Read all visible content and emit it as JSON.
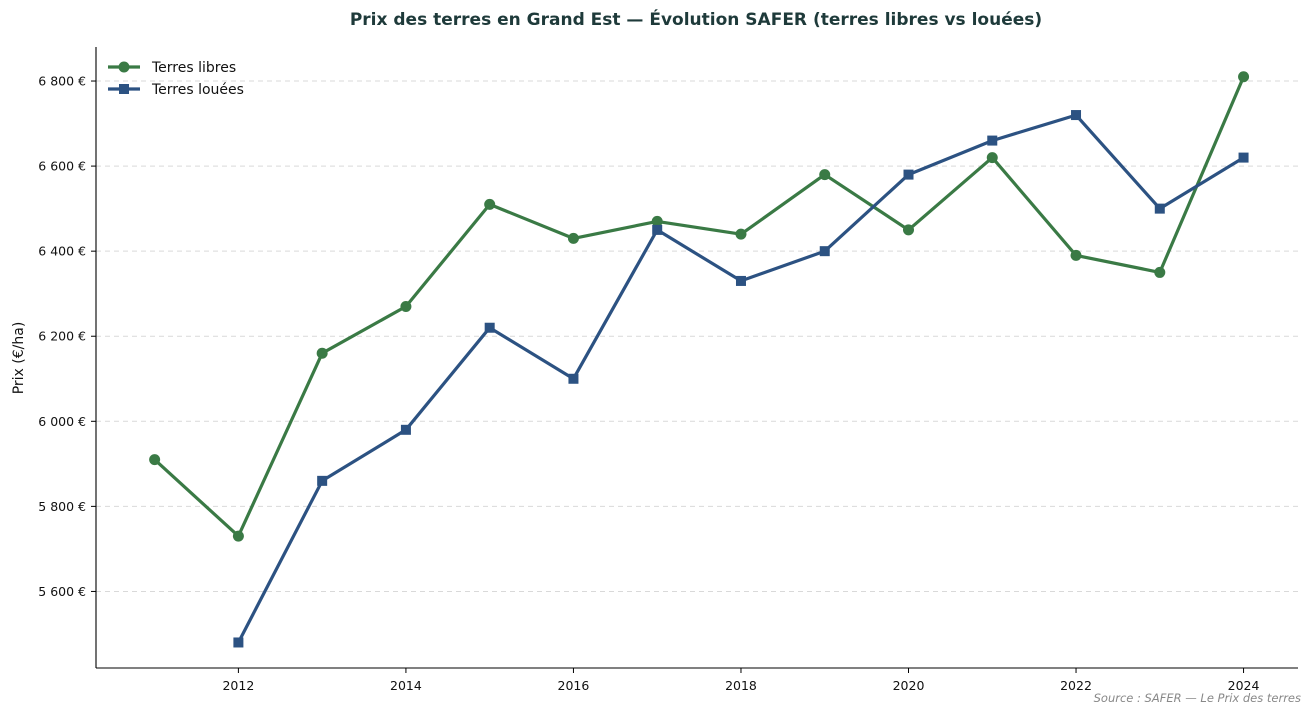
{
  "chart_data": {
    "type": "line",
    "title": "Prix des terres en Grand Est — Évolution SAFER (terres libres vs louées)",
    "xlabel": "",
    "ylabel": "Prix (€/ha)",
    "x": [
      2011,
      2012,
      2013,
      2014,
      2015,
      2016,
      2017,
      2018,
      2019,
      2020,
      2021,
      2022,
      2023,
      2024
    ],
    "xticks": [
      "2012",
      "2014",
      "2016",
      "2018",
      "2020",
      "2022",
      "2024"
    ],
    "xtick_values": [
      2012,
      2014,
      2016,
      2018,
      2020,
      2022,
      2024
    ],
    "yticks": [
      "5 600 €",
      "5 800 €",
      "6 000 €",
      "6 200 €",
      "6 400 €",
      "6 600 €",
      "6 800 €"
    ],
    "ytick_values": [
      5600,
      5800,
      6000,
      6200,
      6400,
      6600,
      6800
    ],
    "xlim": [
      2010.3,
      2024.65
    ],
    "ylim": [
      5420,
      6880
    ],
    "grid": "horizontal dashed",
    "legend_position": "top-left",
    "series": [
      {
        "name": "Terres libres",
        "color": "#3a7a45",
        "marker": "circle",
        "values": [
          5910,
          5730,
          6160,
          6270,
          6510,
          6430,
          6470,
          6440,
          6580,
          6450,
          6620,
          6390,
          6350,
          6810
        ]
      },
      {
        "name": "Terres louées",
        "color": "#2c5282",
        "marker": "square",
        "values": [
          null,
          5480,
          5860,
          5980,
          6220,
          6100,
          6450,
          6330,
          6400,
          6580,
          6660,
          6720,
          6500,
          6620
        ]
      }
    ],
    "source": "Source : SAFER — Le Prix des terres"
  }
}
